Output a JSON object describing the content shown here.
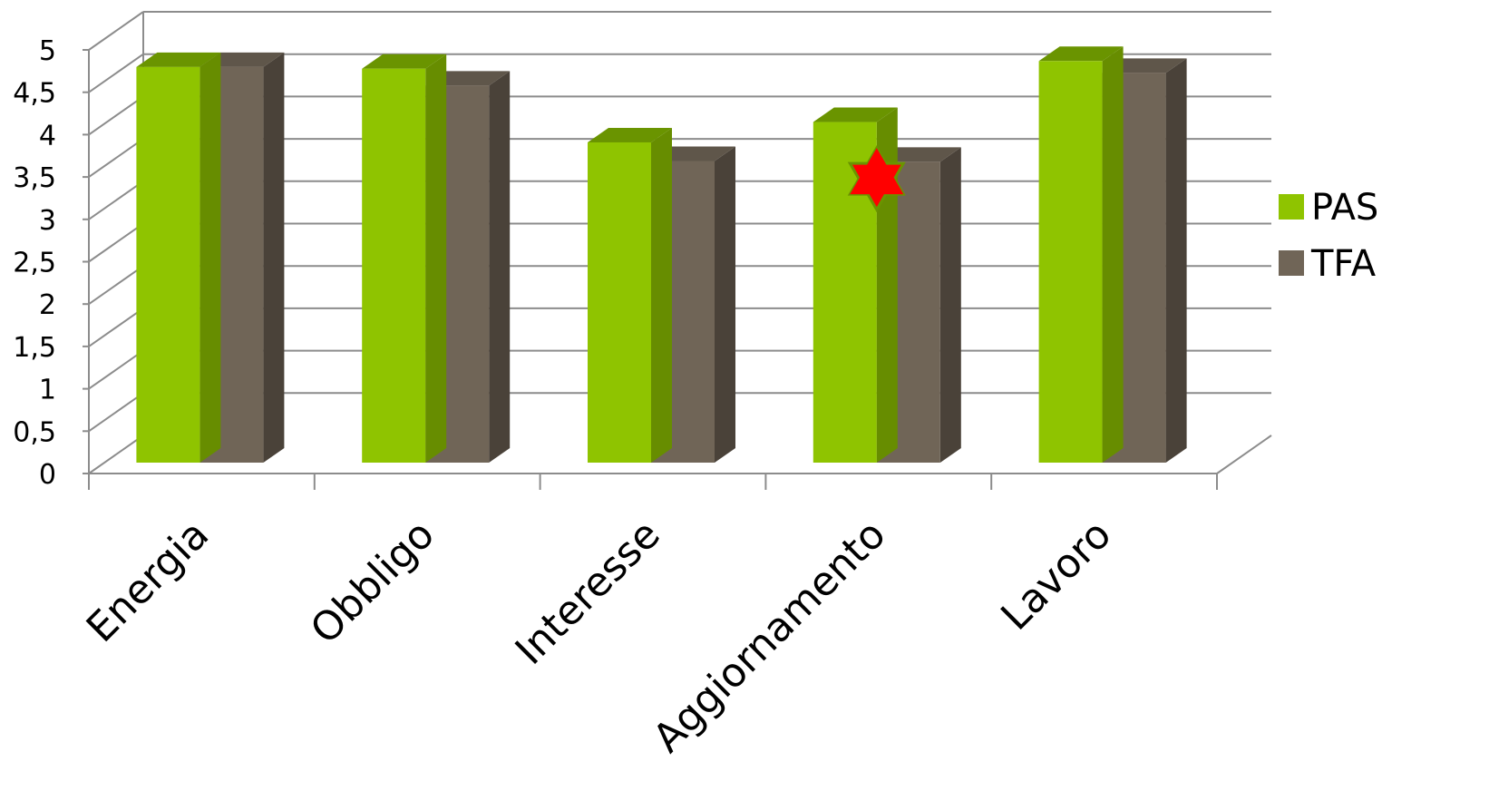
{
  "chart_data": {
    "type": "bar",
    "style": "3d-clustered-column",
    "categories": [
      "Energia",
      "Obbligo",
      "Interesse",
      "Aggiornamento",
      "Lavoro"
    ],
    "series": [
      {
        "name": "PAS",
        "color": "#8fc400",
        "top_color": "#6a9400",
        "values": [
          4.67,
          4.65,
          3.78,
          4.02,
          4.74
        ]
      },
      {
        "name": "TFA",
        "color": "#706557",
        "side_color": "#4a4239",
        "values": [
          4.67,
          4.45,
          3.56,
          3.55,
          4.6
        ]
      }
    ],
    "ylim": [
      0,
      5
    ],
    "yticks": [
      "0",
      "0,5",
      "1",
      "1,5",
      "2",
      "2,5",
      "3",
      "3,5",
      "4",
      "4,5",
      "5"
    ],
    "grid": true,
    "legend": "right",
    "annotation": {
      "shape": "star-of-david-icon",
      "category": "Aggiornamento",
      "value": 3.35,
      "color": "#ff0000",
      "stroke": "#6a9400"
    }
  }
}
